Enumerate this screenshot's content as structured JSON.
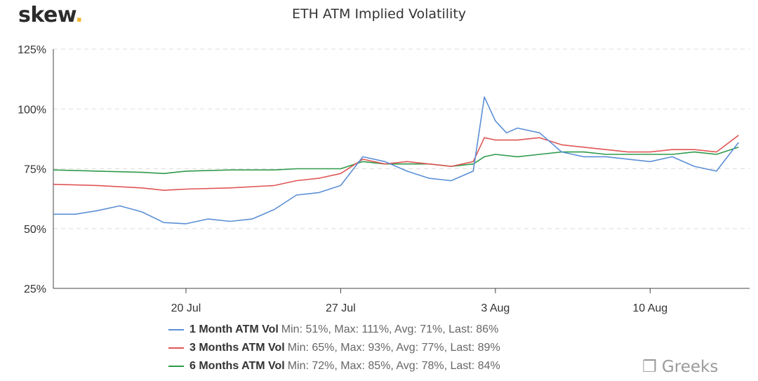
{
  "brand": {
    "name": "skew",
    "dot": "."
  },
  "watermark": "❒ Greeks",
  "chart_data": {
    "type": "line",
    "title": "ETH ATM Implied Volatility",
    "xlabel": "",
    "ylabel": "",
    "x_range": [
      "2020-07-16",
      "2020-08-14"
    ],
    "ylim": [
      25,
      125
    ],
    "y_ticks": [
      "25%",
      "50%",
      "75%",
      "100%",
      "125%"
    ],
    "x_ticks": [
      {
        "date": "2020-07-20",
        "label": "20 Jul"
      },
      {
        "date": "2020-07-27",
        "label": "27 Jul"
      },
      {
        "date": "2020-08-03",
        "label": "3 Aug"
      },
      {
        "date": "2020-08-10",
        "label": "10 Aug"
      }
    ],
    "grid": "horizontal-dashed",
    "legend_position": "bottom",
    "series": [
      {
        "name": "1 Month ATM Vol",
        "stats": "Min: 51%, Max: 111%, Avg: 71%, Last: 86%",
        "color": "#5b8fd6",
        "points": [
          [
            "2020-07-14",
            56
          ],
          [
            "2020-07-15",
            56
          ],
          [
            "2020-07-16",
            57.5
          ],
          [
            "2020-07-17",
            59.5
          ],
          [
            "2020-07-18",
            57
          ],
          [
            "2020-07-19",
            52.5
          ],
          [
            "2020-07-20",
            52
          ],
          [
            "2020-07-21",
            54
          ],
          [
            "2020-07-22",
            53
          ],
          [
            "2020-07-23",
            54
          ],
          [
            "2020-07-24",
            58
          ],
          [
            "2020-07-25",
            64
          ],
          [
            "2020-07-26",
            65
          ],
          [
            "2020-07-27",
            68
          ],
          [
            "2020-07-28",
            80
          ],
          [
            "2020-07-29",
            78
          ],
          [
            "2020-07-30",
            74
          ],
          [
            "2020-07-31",
            71
          ],
          [
            "2020-08-01",
            70
          ],
          [
            "2020-08-02",
            74
          ],
          [
            "2020-08-02T12",
            105
          ],
          [
            "2020-08-03",
            95
          ],
          [
            "2020-08-03T12",
            90
          ],
          [
            "2020-08-04",
            92
          ],
          [
            "2020-08-05",
            90
          ],
          [
            "2020-08-06",
            82
          ],
          [
            "2020-08-07",
            80
          ],
          [
            "2020-08-08",
            80
          ],
          [
            "2020-08-09",
            79
          ],
          [
            "2020-08-10",
            78
          ],
          [
            "2020-08-11",
            80
          ],
          [
            "2020-08-12",
            76
          ],
          [
            "2020-08-13",
            74
          ],
          [
            "2020-08-14",
            86
          ]
        ]
      },
      {
        "name": "3 Months ATM Vol",
        "stats": "Min: 65%, Max: 93%, Avg: 77%, Last: 89%",
        "color": "#e05656",
        "points": [
          [
            "2020-07-14",
            68.5
          ],
          [
            "2020-07-16",
            68
          ],
          [
            "2020-07-18",
            67
          ],
          [
            "2020-07-19",
            66
          ],
          [
            "2020-07-20",
            66.5
          ],
          [
            "2020-07-22",
            67
          ],
          [
            "2020-07-24",
            68
          ],
          [
            "2020-07-25",
            70
          ],
          [
            "2020-07-26",
            71
          ],
          [
            "2020-07-27",
            73
          ],
          [
            "2020-07-28",
            79
          ],
          [
            "2020-07-29",
            77
          ],
          [
            "2020-07-30",
            78
          ],
          [
            "2020-07-31",
            77
          ],
          [
            "2020-08-01",
            76
          ],
          [
            "2020-08-02",
            78
          ],
          [
            "2020-08-02T12",
            88
          ],
          [
            "2020-08-03",
            87
          ],
          [
            "2020-08-04",
            87
          ],
          [
            "2020-08-05",
            88
          ],
          [
            "2020-08-06",
            85
          ],
          [
            "2020-08-07",
            84
          ],
          [
            "2020-08-08",
            83
          ],
          [
            "2020-08-09",
            82
          ],
          [
            "2020-08-10",
            82
          ],
          [
            "2020-08-11",
            83
          ],
          [
            "2020-08-12",
            83
          ],
          [
            "2020-08-13",
            82
          ],
          [
            "2020-08-14",
            89
          ]
        ]
      },
      {
        "name": "6 Months ATM Vol",
        "stats": "Min: 72%, Max: 85%, Avg: 78%, Last: 84%",
        "color": "#2e9a4b",
        "points": [
          [
            "2020-07-14",
            74.5
          ],
          [
            "2020-07-16",
            74
          ],
          [
            "2020-07-18",
            73.5
          ],
          [
            "2020-07-19",
            73
          ],
          [
            "2020-07-20",
            74
          ],
          [
            "2020-07-22",
            74.5
          ],
          [
            "2020-07-24",
            74.5
          ],
          [
            "2020-07-25",
            75
          ],
          [
            "2020-07-26",
            75
          ],
          [
            "2020-07-27",
            75
          ],
          [
            "2020-07-28",
            78
          ],
          [
            "2020-07-29",
            77
          ],
          [
            "2020-07-30",
            77
          ],
          [
            "2020-07-31",
            77
          ],
          [
            "2020-08-01",
            76
          ],
          [
            "2020-08-02",
            77
          ],
          [
            "2020-08-02T12",
            80
          ],
          [
            "2020-08-03",
            81
          ],
          [
            "2020-08-04",
            80
          ],
          [
            "2020-08-05",
            81
          ],
          [
            "2020-08-06",
            82
          ],
          [
            "2020-08-07",
            82
          ],
          [
            "2020-08-08",
            81
          ],
          [
            "2020-08-09",
            81
          ],
          [
            "2020-08-10",
            81
          ],
          [
            "2020-08-11",
            81
          ],
          [
            "2020-08-12",
            82
          ],
          [
            "2020-08-13",
            81
          ],
          [
            "2020-08-14",
            84
          ]
        ]
      }
    ]
  }
}
